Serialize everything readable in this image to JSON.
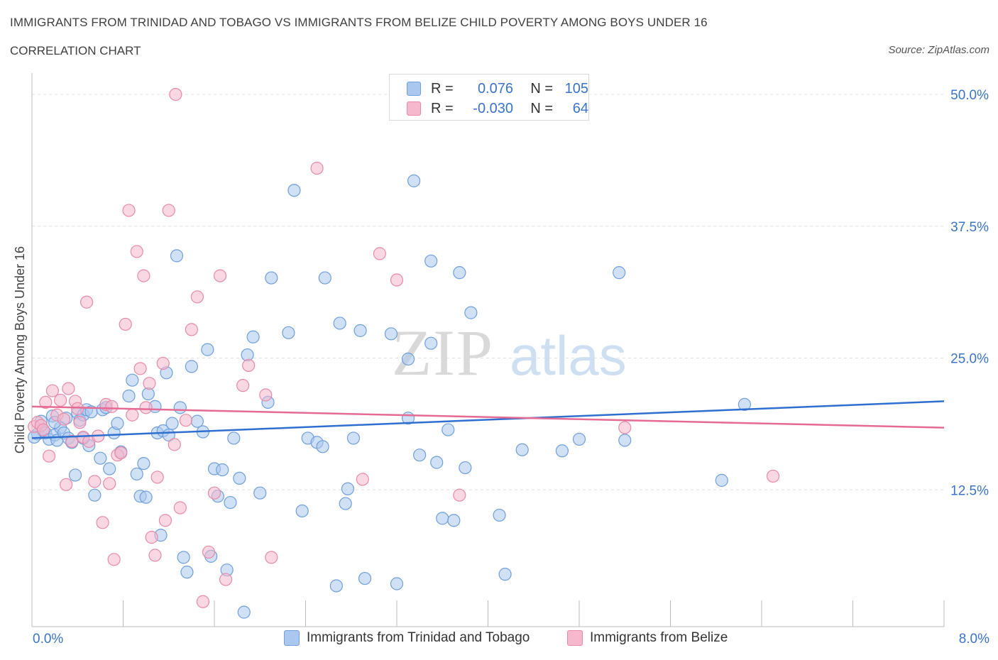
{
  "header": {
    "title": "IMMIGRANTS FROM TRINIDAD AND TOBAGO VS IMMIGRANTS FROM BELIZE CHILD POVERTY AMONG BOYS UNDER 16",
    "subtitle": "CORRELATION CHART",
    "source": "Source: ZipAtlas.com"
  },
  "legend": {
    "rows": [
      {
        "r_label": "R =",
        "r_value": "0.076",
        "n_label": "N =",
        "n_value": "105"
      },
      {
        "r_label": "R =",
        "r_value": "-0.030",
        "n_label": "N =",
        "n_value": "64"
      }
    ],
    "bottom": [
      "Immigrants from Trinidad and Tobago",
      "Immigrants from Belize"
    ]
  },
  "colors": {
    "blue_fill": "#aac8ef",
    "blue_stroke": "#6f9fdc",
    "blue_line": "#2f6fd0",
    "pink_fill": "#f5b8cc",
    "pink_stroke": "#e88aa8",
    "pink_line": "#e56a94",
    "axis_text": "#3a74c9",
    "grid": "#e2e2e2"
  },
  "chart_data": {
    "type": "scatter",
    "title": "IMMIGRANTS FROM TRINIDAD AND TOBAGO VS IMMIGRANTS FROM BELIZE CHILD POVERTY AMONG BOYS UNDER 16",
    "ylabel": "Child Poverty Among Boys Under 16",
    "xlim": [
      0,
      8.0
    ],
    "ylim": [
      0,
      50.0
    ],
    "x_tick_labels": [
      "0.0%",
      "8.0%"
    ],
    "y_ticks": [
      12.5,
      25.0,
      37.5,
      50.0
    ],
    "y_tick_labels": [
      "12.5%",
      "25.0%",
      "37.5%",
      "50.0%"
    ],
    "grid": true,
    "watermark": "ZIPatlas",
    "series": [
      {
        "name": "Immigrants from Trinidad and Tobago",
        "color": "blue",
        "R": 0.076,
        "N": 105,
        "trend": [
          [
            0,
            17.4
          ],
          [
            8.0,
            20.9
          ]
        ],
        "points": [
          [
            0.05,
            17.8
          ],
          [
            0.08,
            19.0
          ],
          [
            0.1,
            18.1
          ],
          [
            0.12,
            17.9
          ],
          [
            0.15,
            17.3
          ],
          [
            0.18,
            19.5
          ],
          [
            0.2,
            17.7
          ],
          [
            0.22,
            17.2
          ],
          [
            0.25,
            18.4
          ],
          [
            0.28,
            17.9
          ],
          [
            0.3,
            19.3
          ],
          [
            0.32,
            17.4
          ],
          [
            0.35,
            17.0
          ],
          [
            0.38,
            13.9
          ],
          [
            0.4,
            19.8
          ],
          [
            0.42,
            19.1
          ],
          [
            0.45,
            19.6
          ],
          [
            0.48,
            20.1
          ],
          [
            0.5,
            16.7
          ],
          [
            0.52,
            19.9
          ],
          [
            0.55,
            12.0
          ],
          [
            0.6,
            15.5
          ],
          [
            0.62,
            20.1
          ],
          [
            0.65,
            20.3
          ],
          [
            0.68,
            14.5
          ],
          [
            0.72,
            17.9
          ],
          [
            0.75,
            18.8
          ],
          [
            0.78,
            16.1
          ],
          [
            0.85,
            21.4
          ],
          [
            0.88,
            22.9
          ],
          [
            0.92,
            14.0
          ],
          [
            0.95,
            11.9
          ],
          [
            0.98,
            15.0
          ],
          [
            1.0,
            11.8
          ],
          [
            1.02,
            21.6
          ],
          [
            1.08,
            20.4
          ],
          [
            1.1,
            17.9
          ],
          [
            1.13,
            8.2
          ],
          [
            1.15,
            18.1
          ],
          [
            1.18,
            23.6
          ],
          [
            1.2,
            17.7
          ],
          [
            1.23,
            18.8
          ],
          [
            1.27,
            34.7
          ],
          [
            1.3,
            20.3
          ],
          [
            1.33,
            6.1
          ],
          [
            1.36,
            4.7
          ],
          [
            1.4,
            24.2
          ],
          [
            1.45,
            19.0
          ],
          [
            1.5,
            18.0
          ],
          [
            1.54,
            25.8
          ],
          [
            1.57,
            6.2
          ],
          [
            1.6,
            14.5
          ],
          [
            1.63,
            11.9
          ],
          [
            1.67,
            14.4
          ],
          [
            1.71,
            4.9
          ],
          [
            1.74,
            11.3
          ],
          [
            1.77,
            17.4
          ],
          [
            1.82,
            13.6
          ],
          [
            1.86,
            0.9
          ],
          [
            1.89,
            25.3
          ],
          [
            1.94,
            27.0
          ],
          [
            2.0,
            12.2
          ],
          [
            2.07,
            20.8
          ],
          [
            2.1,
            32.6
          ],
          [
            2.25,
            27.4
          ],
          [
            2.3,
            40.9
          ],
          [
            2.37,
            10.5
          ],
          [
            2.42,
            17.4
          ],
          [
            2.5,
            17.0
          ],
          [
            2.55,
            16.6
          ],
          [
            2.57,
            32.6
          ],
          [
            2.67,
            3.4
          ],
          [
            2.7,
            28.3
          ],
          [
            2.75,
            11.2
          ],
          [
            2.77,
            12.6
          ],
          [
            2.82,
            17.4
          ],
          [
            2.88,
            27.6
          ],
          [
            2.92,
            4.1
          ],
          [
            3.15,
            27.3
          ],
          [
            3.2,
            3.6
          ],
          [
            3.3,
            19.3
          ],
          [
            3.3,
            24.9
          ],
          [
            3.35,
            41.8
          ],
          [
            3.4,
            15.8
          ],
          [
            3.5,
            34.2
          ],
          [
            3.5,
            26.4
          ],
          [
            3.55,
            15.1
          ],
          [
            3.6,
            9.8
          ],
          [
            3.65,
            18.2
          ],
          [
            3.7,
            9.6
          ],
          [
            3.75,
            33.1
          ],
          [
            3.8,
            14.6
          ],
          [
            3.85,
            29.3
          ],
          [
            4.1,
            10.1
          ],
          [
            4.15,
            4.5
          ],
          [
            4.3,
            16.3
          ],
          [
            4.65,
            16.2
          ],
          [
            4.8,
            17.3
          ],
          [
            5.15,
            33.1
          ],
          [
            5.2,
            17.2
          ],
          [
            6.05,
            13.4
          ],
          [
            6.25,
            20.6
          ],
          [
            0.02,
            17.5
          ],
          [
            0.2,
            18.9
          ],
          [
            0.45,
            17.4
          ]
        ]
      },
      {
        "name": "Immigrants from Belize",
        "color": "pink",
        "R": -0.03,
        "N": 64,
        "trend": [
          [
            0,
            20.4
          ],
          [
            8.0,
            18.4
          ]
        ],
        "points": [
          [
            0.02,
            18.5
          ],
          [
            0.05,
            18.9
          ],
          [
            0.08,
            18.6
          ],
          [
            0.1,
            18.2
          ],
          [
            0.12,
            20.8
          ],
          [
            0.15,
            15.7
          ],
          [
            0.18,
            21.9
          ],
          [
            0.22,
            19.6
          ],
          [
            0.25,
            21.0
          ],
          [
            0.28,
            19.2
          ],
          [
            0.3,
            13.0
          ],
          [
            0.32,
            22.1
          ],
          [
            0.35,
            17.1
          ],
          [
            0.38,
            20.9
          ],
          [
            0.42,
            18.9
          ],
          [
            0.45,
            17.5
          ],
          [
            0.48,
            30.3
          ],
          [
            0.5,
            17.1
          ],
          [
            0.55,
            13.3
          ],
          [
            0.58,
            17.6
          ],
          [
            0.62,
            9.4
          ],
          [
            0.65,
            20.6
          ],
          [
            0.68,
            13.1
          ],
          [
            0.72,
            5.9
          ],
          [
            0.75,
            15.8
          ],
          [
            0.78,
            16.0
          ],
          [
            0.82,
            28.2
          ],
          [
            0.85,
            39.0
          ],
          [
            0.88,
            19.6
          ],
          [
            0.92,
            35.1
          ],
          [
            0.95,
            24.0
          ],
          [
            0.98,
            32.8
          ],
          [
            1.0,
            20.3
          ],
          [
            1.03,
            22.6
          ],
          [
            1.05,
            8.0
          ],
          [
            1.08,
            6.3
          ],
          [
            1.15,
            24.5
          ],
          [
            1.17,
            9.6
          ],
          [
            1.2,
            39.0
          ],
          [
            1.25,
            16.8
          ],
          [
            1.3,
            10.8
          ],
          [
            1.35,
            19.1
          ],
          [
            1.4,
            27.7
          ],
          [
            1.45,
            30.8
          ],
          [
            1.5,
            1.9
          ],
          [
            1.55,
            6.6
          ],
          [
            1.6,
            12.2
          ],
          [
            1.65,
            32.8
          ],
          [
            1.7,
            4.0
          ],
          [
            1.85,
            22.4
          ],
          [
            1.9,
            24.3
          ],
          [
            2.05,
            21.5
          ],
          [
            2.1,
            6.1
          ],
          [
            2.5,
            43.0
          ],
          [
            2.9,
            13.5
          ],
          [
            3.05,
            34.9
          ],
          [
            3.2,
            32.4
          ],
          [
            3.75,
            12.0
          ],
          [
            5.2,
            18.4
          ],
          [
            6.5,
            13.8
          ],
          [
            1.26,
            50.0
          ],
          [
            1.1,
            13.7
          ],
          [
            0.7,
            20.4
          ],
          [
            0.4,
            20.2
          ]
        ]
      }
    ]
  }
}
